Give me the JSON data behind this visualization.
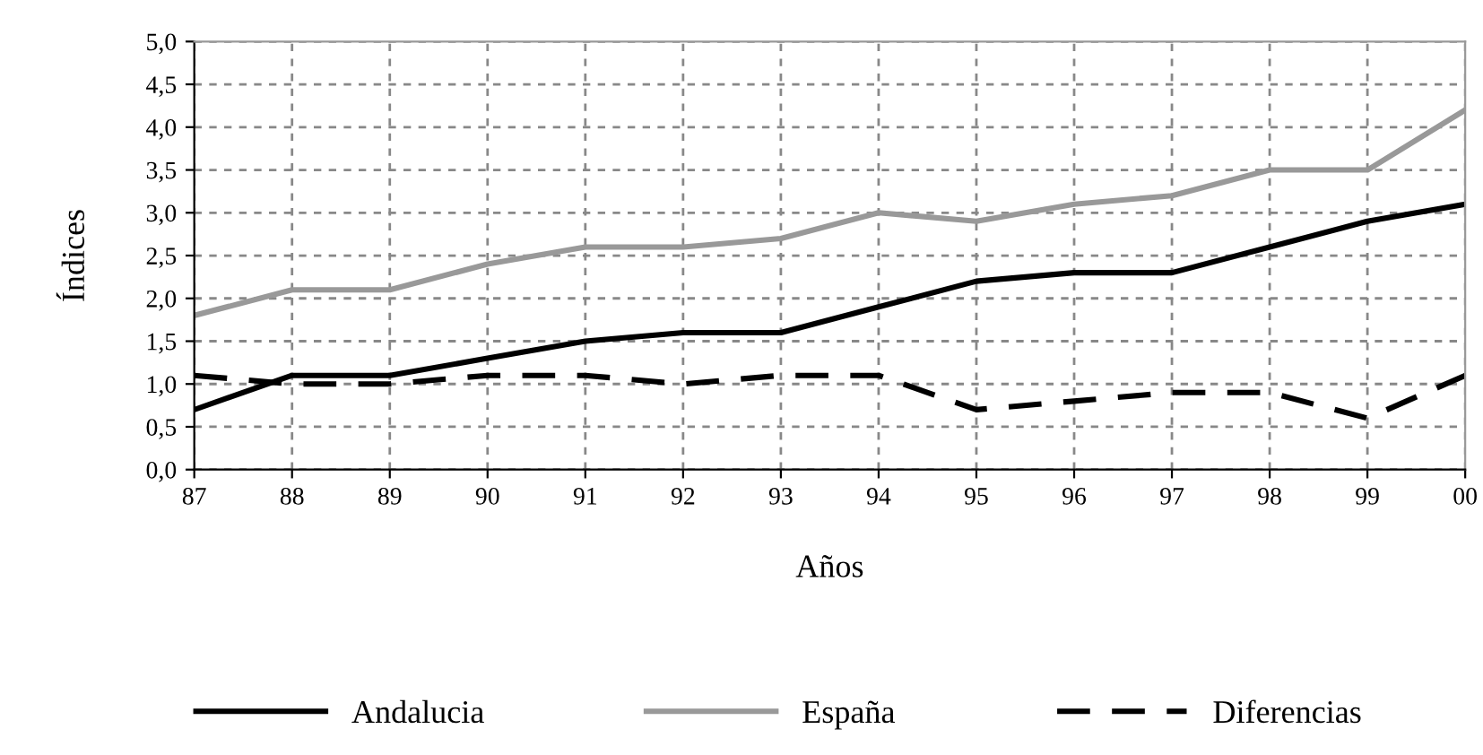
{
  "chart_data": {
    "type": "line",
    "xlabel": "Años",
    "ylabel": "Índices",
    "categories": [
      "87",
      "88",
      "89",
      "90",
      "91",
      "92",
      "93",
      "94",
      "95",
      "96",
      "97",
      "98",
      "99",
      "00"
    ],
    "series": [
      {
        "name": "Andalucia",
        "color": "#000000",
        "line_style": "solid",
        "values": [
          0.7,
          1.1,
          1.1,
          1.3,
          1.5,
          1.6,
          1.6,
          1.9,
          2.2,
          2.3,
          2.3,
          2.6,
          2.9,
          3.1
        ]
      },
      {
        "name": "España",
        "color": "#999999",
        "line_style": "solid",
        "values": [
          1.8,
          2.1,
          2.1,
          2.4,
          2.6,
          2.6,
          2.7,
          3.0,
          2.9,
          3.1,
          3.2,
          3.5,
          3.5,
          4.2
        ]
      },
      {
        "name": "Diferencias",
        "color": "#000000",
        "line_style": "dashed",
        "values": [
          1.1,
          1.0,
          1.0,
          1.1,
          1.1,
          1.0,
          1.1,
          1.1,
          0.7,
          0.8,
          0.9,
          0.9,
          0.6,
          1.1
        ]
      }
    ],
    "ylim": [
      0,
      5
    ],
    "yticks": [
      {
        "value": 0,
        "label": "0,0"
      },
      {
        "value": 0.5,
        "label": "0,5"
      },
      {
        "value": 1,
        "label": "1,0"
      },
      {
        "value": 1.5,
        "label": "1,5"
      },
      {
        "value": 2,
        "label": "2,0"
      },
      {
        "value": 2.5,
        "label": "2,5"
      },
      {
        "value": 3,
        "label": "3,0"
      },
      {
        "value": 3.5,
        "label": "3,5"
      },
      {
        "value": 4,
        "label": "4,0"
      },
      {
        "value": 4.5,
        "label": "4,5"
      },
      {
        "value": 5,
        "label": "5,0"
      }
    ],
    "grid": true,
    "legend": "bottom",
    "marker": "none"
  }
}
